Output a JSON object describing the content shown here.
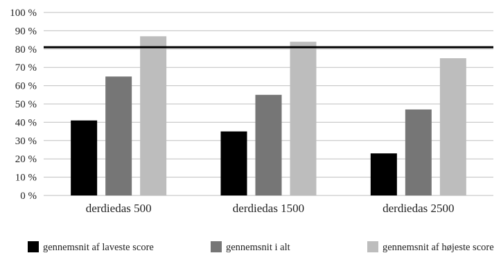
{
  "chart_data": {
    "type": "bar",
    "categories": [
      "derdiedas 500",
      "derdiedas 1500",
      "derdiedas 2500"
    ],
    "series": [
      {
        "name": "gennemsnit af laveste score",
        "values": [
          41,
          35,
          23
        ],
        "color": "#000000"
      },
      {
        "name": "gennemsnit i alt",
        "values": [
          65,
          55,
          47
        ],
        "color": "#767676"
      },
      {
        "name": "gennemsnit af højeste score",
        "values": [
          87,
          84,
          75
        ],
        "color": "#bdbdbd"
      }
    ],
    "ylim": [
      0,
      100
    ],
    "yticks": [
      "0 %",
      "10 %",
      "20 %",
      "30 %",
      "40 %",
      "50 %",
      "60 %",
      "70 %",
      "80 %",
      "90 %",
      "100 %"
    ],
    "reference_line": {
      "value": 81,
      "color": "#000000"
    },
    "grid": true,
    "legend_position": "bottom",
    "title": "",
    "xlabel": "",
    "ylabel": ""
  }
}
